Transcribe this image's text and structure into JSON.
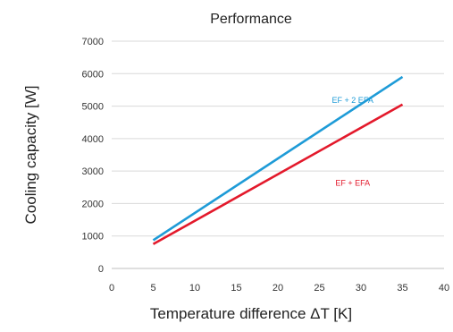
{
  "chart_data": {
    "type": "line",
    "title": "Performance",
    "xlabel": "Temperature difference ΔT [K]",
    "ylabel": "Cooling capacity [W]",
    "xlim": [
      0,
      40
    ],
    "ylim": [
      0,
      7000
    ],
    "x_ticks": [
      0,
      5,
      10,
      15,
      20,
      25,
      30,
      35,
      40
    ],
    "y_ticks": [
      0,
      1000,
      2000,
      3000,
      4000,
      5000,
      6000,
      7000
    ],
    "grid": true,
    "grid_axis": "y",
    "legend": "inline labels",
    "series": [
      {
        "name": "EF + 2 EFA",
        "color": "#1e9bd7",
        "x": [
          5,
          35
        ],
        "y": [
          870,
          5900
        ]
      },
      {
        "name": "EF + EFA",
        "color": "#e3192b",
        "x": [
          5,
          35
        ],
        "y": [
          750,
          5050
        ]
      }
    ]
  }
}
